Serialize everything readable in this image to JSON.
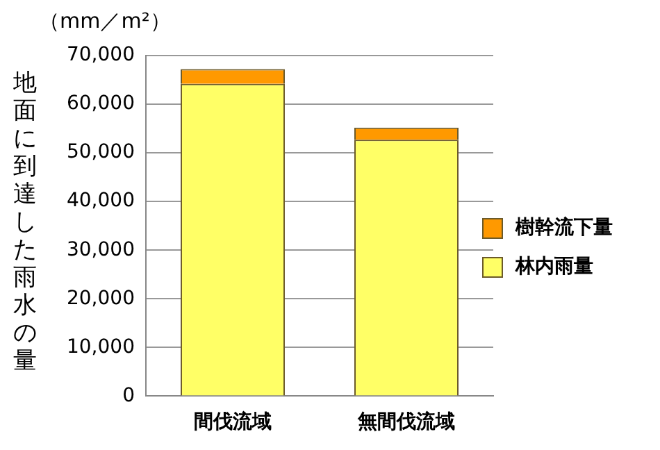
{
  "chart_data": {
    "type": "bar",
    "ylabel": "地面に到達した雨水の量",
    "annotations": [
      "（mm／m²）"
    ],
    "categories": [
      "間伐流域",
      "無間伐流域"
    ],
    "series": [
      {
        "name": "林内雨量",
        "color": "#ffff66",
        "values": [
          64200,
          52700
        ]
      },
      {
        "name": "樹幹流下量",
        "color": "#ff9900",
        "values": [
          3000,
          2500
        ]
      }
    ],
    "stacked": true,
    "ylim": [
      0,
      70000
    ],
    "yticks": [
      0,
      {
        "value": 10000,
        "label": "10,000"
      },
      {
        "value": 20000,
        "label": "20,000"
      },
      {
        "value": 30000,
        "label": "30,000"
      },
      {
        "value": 40000,
        "label": "40,000"
      },
      {
        "value": 50000,
        "label": "50,000"
      },
      {
        "value": 60000,
        "label": "60,000"
      },
      {
        "value": 70000,
        "label": "70,000"
      }
    ],
    "grid": "y",
    "legend": "right"
  }
}
